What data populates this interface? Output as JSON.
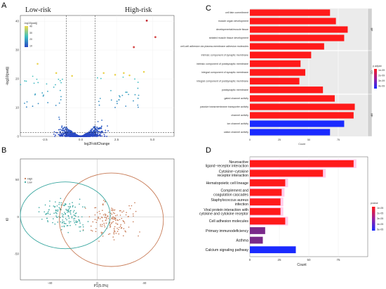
{
  "panels": {
    "A": "A",
    "B": "B",
    "C": "C",
    "D": "D"
  },
  "chart_data": [
    {
      "panel": "A",
      "type": "scatter",
      "title": "",
      "xlabel": "log2FoldChange",
      "ylabel": "-log10(padj)",
      "xlim": [
        -4.2,
        6.5
      ],
      "ylim": [
        0,
        42
      ],
      "xticks": [
        "-2.5",
        "0.0",
        "2.5",
        "5.0"
      ],
      "xtick_values": [
        -2.5,
        0,
        2.5,
        5.0
      ],
      "yticks": [
        "0",
        "10",
        "20",
        "30",
        "40"
      ],
      "ytick_values": [
        0,
        10,
        20,
        30,
        40
      ],
      "group_labels": [
        "Low-risk",
        "High-risk"
      ],
      "thresholds": {
        "x": [
          -1,
          1
        ],
        "y": 1.3
      },
      "legend_title": "-log10(padj)",
      "legend_ticks": [
        "40",
        "30",
        "20",
        "10"
      ],
      "legend_tick_values": [
        40,
        30,
        20,
        10
      ],
      "color_low": "#2a46c4",
      "color_mid": "#3cc0c0",
      "color_high": "#f0d84a",
      "highlight": [
        {
          "x": 4.6,
          "y": 40.2,
          "color": "#c0212a",
          "label": ""
        },
        {
          "x": 3.7,
          "y": 31.0,
          "color": "#d44444",
          "label": ""
        },
        {
          "x": 5.2,
          "y": 34.5,
          "color": "#d44444",
          "label": ""
        }
      ],
      "labeled_yellow": [
        {
          "x": -3.0,
          "y": 25.2
        },
        {
          "x": -1.7,
          "y": 22.0
        },
        {
          "x": -0.6,
          "y": 21.0
        },
        {
          "x": 1.6,
          "y": 22.0
        },
        {
          "x": 2.4,
          "y": 21.4
        },
        {
          "x": 3.0,
          "y": 22.0
        },
        {
          "x": 3.4,
          "y": 21.2
        },
        {
          "x": 4.4,
          "y": 22.4
        }
      ]
    },
    {
      "panel": "B",
      "type": "scatter",
      "title": "",
      "xlabel": "P1(5.0%)",
      "ylabel": "t0",
      "xlim": [
        -65,
        65
      ],
      "ylim": [
        -85,
        78
      ],
      "xticks": [
        "-40",
        "0",
        "40"
      ],
      "xtick_values": [
        -40,
        0,
        40
      ],
      "yticks": [
        "50",
        "0",
        "-50"
      ],
      "ytick_values": [
        50,
        0,
        -50
      ],
      "series": [
        {
          "name": "High",
          "color": "#c77a55",
          "center": [
            12,
            -4
          ],
          "ellipse": [
            44,
            63
          ]
        },
        {
          "name": "Low",
          "color": "#3aa7a0",
          "center": [
            -27,
            2
          ],
          "ellipse": [
            38,
            45
          ]
        }
      ]
    },
    {
      "panel": "C",
      "type": "bar",
      "orientation": "horizontal",
      "xlabel": "Count",
      "xlim": [
        0,
        100
      ],
      "xticks": [
        "0",
        "25",
        "50",
        "75"
      ],
      "xtick_values": [
        0,
        25,
        50,
        75
      ],
      "legend_title": "p.adjust",
      "legend_ticks": [
        "1e-09",
        "2e-09",
        "3e-09",
        "4e-09"
      ],
      "groups": [
        {
          "name": "BP",
          "categories": [
            "cell fate commitment",
            "muscle organ development",
            "developmental/muscle tissue",
            "striated muscle tissue development",
            "cell-cell adhesion via plasma-membrane adhesion molecules"
          ],
          "values": [
            68,
            73,
            83,
            80,
            63
          ]
        },
        {
          "name": "CC",
          "categories": [
            "intrinsic component of synaptic membrane",
            "intrinsic component of postsynaptic membrane",
            "integral component of synaptic membrane",
            "integral component of postsynaptic membrane",
            "postsynaptic membrane"
          ],
          "values": [
            52,
            43,
            47,
            42,
            62
          ]
        },
        {
          "name": "MF",
          "categories": [
            "gated channel activity",
            "passive transmembrane transporter activity",
            "channel activity",
            "ion channel activity",
            "cation channel activity"
          ],
          "values": [
            72,
            89,
            88,
            80,
            68
          ]
        }
      ]
    },
    {
      "panel": "D",
      "type": "bar",
      "orientation": "horizontal",
      "xlabel": "Count",
      "xlim": [
        0,
        100
      ],
      "xticks": [
        "0",
        "25",
        "50",
        "75"
      ],
      "xtick_values": [
        0,
        25,
        50,
        75
      ],
      "legend_title": "pvalue",
      "legend_ticks": [
        "1e-05",
        "2e-05",
        "3e-05",
        "4e-05",
        "5e-05"
      ],
      "categories": [
        "Neuroactive ligand−receptor interaction",
        "Cytokine−cytokine receptor interaction",
        "Hematopoietic cell lineage",
        "Complement and coagulation cascades",
        "Staphylococcus aureus infection",
        "Viral protein interaction with cytokine and cytokine receptor",
        "Cell adhesion molecules",
        "Primary immunodeficiency",
        "Asthma",
        "Calcium signaling pathway"
      ],
      "values": [
        88,
        62,
        30,
        27,
        26,
        26,
        30,
        13,
        11,
        39
      ],
      "colors": [
        "#ff1a1a",
        "#ff1a1a",
        "#ff1a1a",
        "#ff1a1a",
        "#ff1a1a",
        "#ff1a1a",
        "#ff1a1a",
        "#7a2a8a",
        "#7a2a8a",
        "#1a2aff"
      ]
    }
  ]
}
